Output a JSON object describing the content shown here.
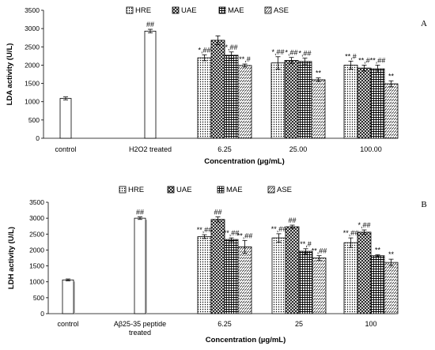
{
  "chart_data": [
    {
      "type": "bar",
      "panel_label": "A",
      "ylabel": "LDA activity  (U/L)",
      "xlabel": "Concentration (µg/mL)",
      "ylim": [
        0,
        3500
      ],
      "yticks": [
        0,
        500,
        1000,
        1500,
        2000,
        2500,
        3000,
        3500
      ],
      "tick_labels": [
        "0",
        "500",
        "1000",
        "1500",
        "2000",
        "2500",
        "3000",
        "3500"
      ],
      "grid": false,
      "legend_position": "top",
      "categories": [
        {
          "label": [
            "control"
          ],
          "bars": [
            {
              "series": "control",
              "value": 1090,
              "error": 40,
              "annotation": ""
            }
          ]
        },
        {
          "label": [
            "H2O2 treated"
          ],
          "bars": [
            {
              "series": "control",
              "value": 2930,
              "error": 50,
              "annotation": "##"
            }
          ]
        },
        {
          "label": [
            "6.25"
          ],
          "bars": [
            {
              "series": "HRE",
              "value": 2200,
              "error": 80,
              "annotation": "*,##"
            },
            {
              "series": "UAE",
              "value": 2680,
              "error": 120,
              "annotation": ""
            },
            {
              "series": "MAE",
              "value": 2270,
              "error": 90,
              "annotation": "*,##"
            },
            {
              "series": "ASE",
              "value": 1990,
              "error": 40,
              "annotation": "**,#"
            }
          ]
        },
        {
          "label": [
            "25.00"
          ],
          "bars": [
            {
              "series": "HRE",
              "value": 2060,
              "error": 170,
              "annotation": "*,##"
            },
            {
              "series": "UAE",
              "value": 2130,
              "error": 80,
              "annotation": "*,##"
            },
            {
              "series": "MAE",
              "value": 2100,
              "error": 90,
              "annotation": "*,##"
            },
            {
              "series": "ASE",
              "value": 1600,
              "error": 50,
              "annotation": "**"
            }
          ]
        },
        {
          "label": [
            "100.00"
          ],
          "bars": [
            {
              "series": "HRE",
              "value": 2000,
              "error": 110,
              "annotation": "**,#"
            },
            {
              "series": "UAE",
              "value": 1920,
              "error": 80,
              "annotation": "**,#"
            },
            {
              "series": "MAE",
              "value": 1900,
              "error": 100,
              "annotation": "**,##"
            },
            {
              "series": "ASE",
              "value": 1490,
              "error": 80,
              "annotation": "**"
            }
          ]
        }
      ]
    },
    {
      "type": "bar",
      "panel_label": "B",
      "ylabel": "LDH activity  (U/L)",
      "xlabel": "Concentration (µg/mL)",
      "ylim": [
        0,
        3500
      ],
      "yticks": [
        0,
        500,
        1000,
        1500,
        2000,
        2500,
        3000,
        3500
      ],
      "tick_labels": [
        "0",
        "500",
        "1000",
        "1500",
        "2000",
        "2500",
        "3000",
        "3500"
      ],
      "grid": false,
      "legend_position": "top",
      "categories": [
        {
          "label": [
            "control"
          ],
          "bars": [
            {
              "series": "control",
              "value": 1060,
              "error": 30,
              "annotation": ""
            }
          ]
        },
        {
          "label": [
            "Aβ25-35 peptide",
            "treated"
          ],
          "bars": [
            {
              "series": "control",
              "value": 3000,
              "error": 40,
              "annotation": "##"
            }
          ]
        },
        {
          "label": [
            "6.25"
          ],
          "bars": [
            {
              "series": "HRE",
              "value": 2420,
              "error": 60,
              "annotation": "**,##"
            },
            {
              "series": "UAE",
              "value": 2960,
              "error": 80,
              "annotation": "##"
            },
            {
              "series": "MAE",
              "value": 2330,
              "error": 50,
              "annotation": "**,##"
            },
            {
              "series": "ASE",
              "value": 2100,
              "error": 200,
              "annotation": "**,##"
            }
          ]
        },
        {
          "label": [
            "25"
          ],
          "bars": [
            {
              "series": "HRE",
              "value": 2380,
              "error": 130,
              "annotation": "**,##"
            },
            {
              "series": "UAE",
              "value": 2730,
              "error": 50,
              "annotation": "##"
            },
            {
              "series": "MAE",
              "value": 1960,
              "error": 80,
              "annotation": "**,#"
            },
            {
              "series": "ASE",
              "value": 1750,
              "error": 70,
              "annotation": "**,##"
            }
          ]
        },
        {
          "label": [
            "100"
          ],
          "bars": [
            {
              "series": "HRE",
              "value": 2230,
              "error": 150,
              "annotation": "**,##"
            },
            {
              "series": "UAE",
              "value": 2560,
              "error": 70,
              "annotation": "*,##"
            },
            {
              "series": "MAE",
              "value": 1820,
              "error": 30,
              "annotation": "**"
            },
            {
              "series": "ASE",
              "value": 1610,
              "error": 100,
              "annotation": "**"
            }
          ]
        }
      ]
    }
  ],
  "legend": [
    {
      "key": "HRE",
      "label": "HRE",
      "pattern": "dots"
    },
    {
      "key": "UAE",
      "label": "UAE",
      "pattern": "diag"
    },
    {
      "key": "MAE",
      "label": "MAE",
      "pattern": "grid"
    },
    {
      "key": "ASE",
      "label": "ASE",
      "pattern": "dash"
    }
  ],
  "colors": {
    "ink": "#000000",
    "control_fill": "#ffffff"
  }
}
